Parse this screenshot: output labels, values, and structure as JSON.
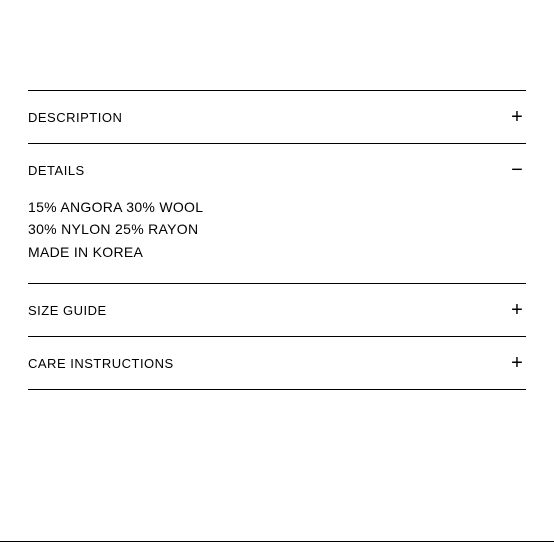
{
  "accordion": {
    "items": [
      {
        "title": "DESCRIPTION",
        "expanded": false,
        "toggle": "+"
      },
      {
        "title": "DETAILS",
        "expanded": true,
        "toggle": "−",
        "content_lines": [
          "15% ANGORA 30% WOOL",
          "30% NYLON 25% RAYON",
          "MADE IN KOREA"
        ]
      },
      {
        "title": "SIZE GUIDE",
        "expanded": false,
        "toggle": "+"
      },
      {
        "title": "CARE INSTRUCTIONS",
        "expanded": false,
        "toggle": "+"
      }
    ]
  },
  "colors": {
    "text": "#000000",
    "border": "#000000",
    "background": "#ffffff"
  },
  "typography": {
    "title_fontsize": 13,
    "content_fontsize": 14,
    "toggle_fontsize": 20
  }
}
